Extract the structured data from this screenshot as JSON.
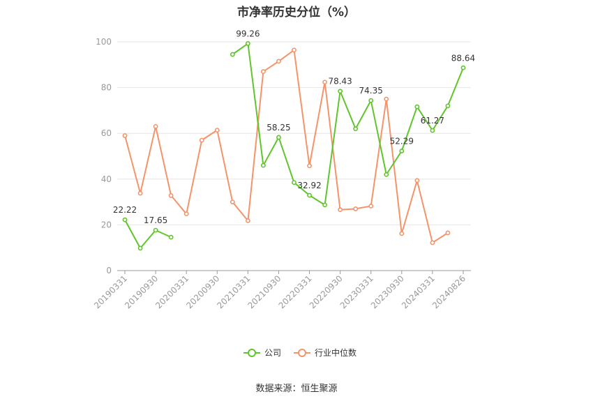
{
  "chart_data": {
    "type": "line",
    "title": "市净率历史分位（%）",
    "source": "数据来源：恒生聚源",
    "ylim": [
      0,
      100
    ],
    "yticks": [
      0,
      20,
      40,
      60,
      80,
      100
    ],
    "grid": true,
    "legend_position": "bottom",
    "x": [
      "20190331",
      "20190630",
      "20190930",
      "20191231",
      "20200331",
      "20200630",
      "20200930",
      "20201231",
      "20210331",
      "20210630",
      "20210930",
      "20211231",
      "20220331",
      "20220630",
      "20220930",
      "20221231",
      "20230331",
      "20230630",
      "20230930",
      "20231231",
      "20240331",
      "20240630",
      "20240826"
    ],
    "tick_labels": [
      "20190331",
      "20190930",
      "20200331",
      "20200930",
      "20210331",
      "20210930",
      "20220331",
      "20220930",
      "20230331",
      "20230930",
      "20240331",
      "20240826"
    ],
    "series": [
      {
        "name": "公司",
        "color": "#5fc52a",
        "values": [
          22.22,
          9.8,
          17.65,
          14.6,
          null,
          null,
          null,
          94.5,
          99.26,
          46.0,
          58.25,
          38.5,
          32.92,
          28.7,
          78.43,
          62.0,
          74.35,
          42.0,
          52.29,
          71.6,
          61.27,
          72.0,
          88.64
        ],
        "labels": {
          "0": "22.22",
          "2": "17.65",
          "8": "99.26",
          "10": "58.25",
          "12": "32.92",
          "14": "78.43",
          "16": "74.35",
          "18": "52.29",
          "20": "61.27",
          "22": "88.64"
        }
      },
      {
        "name": "行业中位数",
        "color": "#f5936a",
        "values": [
          59.0,
          33.8,
          63.0,
          32.8,
          24.8,
          57.0,
          61.4,
          30.0,
          21.8,
          87.0,
          91.5,
          96.4,
          45.8,
          82.4,
          26.6,
          27.0,
          28.2,
          75.0,
          16.2,
          39.4,
          12.2,
          16.5,
          null
        ],
        "labels": {}
      }
    ]
  }
}
